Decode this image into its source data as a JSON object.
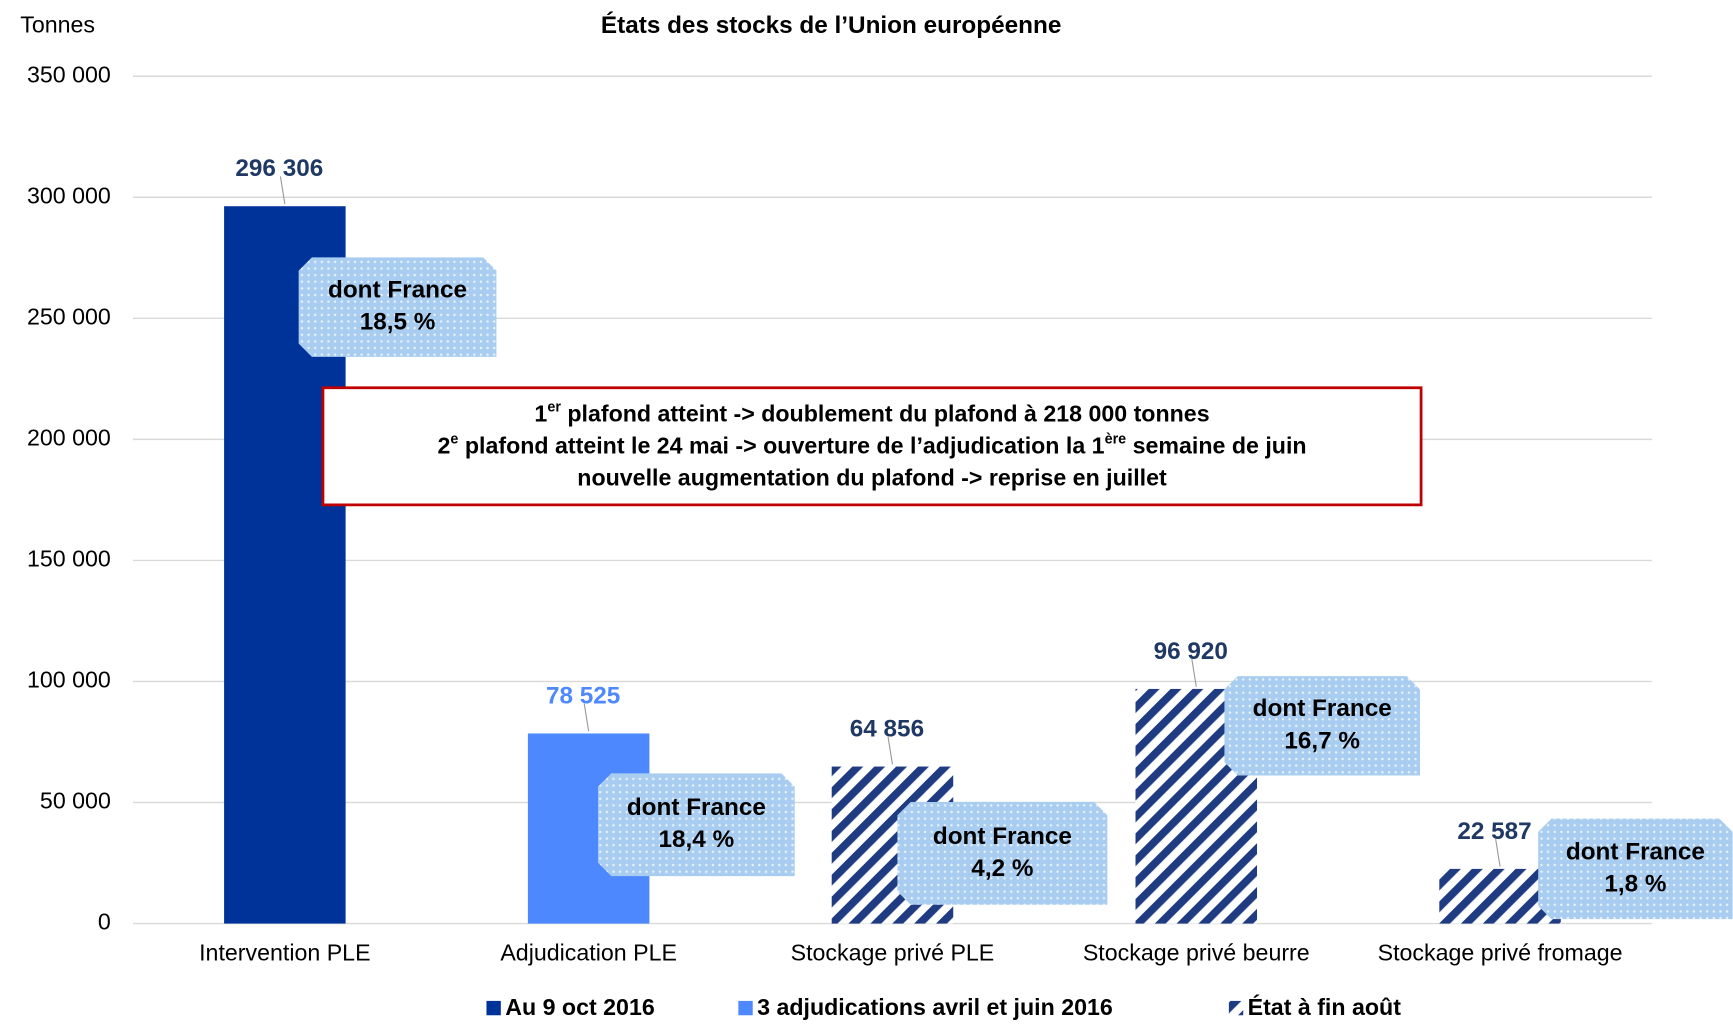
{
  "chart_data": {
    "type": "bar",
    "title": "États des stocks de l’Union européenne",
    "y_label": "Tonnes",
    "categories": [
      "Intervention PLE",
      "Adjudication PLE",
      "Stockage privé PLE",
      "Stockage privé beurre",
      "Stockage privé fromage"
    ],
    "series": [
      {
        "name": "Au 9 oct 2016",
        "color": "#003399",
        "label_color": "#1f3864",
        "values": [
          296306,
          null,
          null,
          null,
          null
        ],
        "value_labels": [
          "296 306",
          null,
          null,
          null,
          null
        ]
      },
      {
        "name": "3 adjudications avril et juin 2016",
        "color": "#4d88ff",
        "label_color": "#4d88ff",
        "values": [
          null,
          78525,
          null,
          null,
          null
        ],
        "value_labels": [
          null,
          "78 525",
          null,
          null,
          null
        ]
      },
      {
        "name": "État à fin août",
        "color": "#1f3b82",
        "pattern": "hatch",
        "label_color": "#1f3864",
        "values": [
          null,
          null,
          64856,
          96920,
          22587
        ],
        "value_labels": [
          null,
          null,
          "64 856",
          "96 920",
          "22 587"
        ]
      }
    ],
    "ylim": [
      0,
      350000
    ],
    "yticks": [
      0,
      {
        "value": 50000,
        "label": "50 000"
      },
      {
        "value": 100000,
        "label": "100 000"
      },
      {
        "value": 150000,
        "label": "150 000"
      },
      {
        "value": 200000,
        "label": "200 000"
      },
      {
        "value": 250000,
        "label": "250 000"
      },
      {
        "value": 300000,
        "label": "300 000"
      },
      {
        "value": 350000,
        "label": "350 000"
      }
    ],
    "grid": true,
    "legend": "bottom",
    "annotations": [
      {
        "lines": [
          "dont France",
          "18,5 %"
        ]
      },
      {
        "lines": [
          "dont France",
          "18,4 %"
        ]
      },
      {
        "lines": [
          "dont France",
          "4,2 %"
        ]
      },
      {
        "lines": [
          "dont France",
          "16,7 %"
        ]
      },
      {
        "lines": [
          "dont France",
          "1,8 %"
        ]
      }
    ],
    "note": {
      "color": "#c00000",
      "lines": [
        [
          "1",
          "er",
          " plafond atteint -> doublement du plafond à 218 000 tonnes"
        ],
        [
          "2",
          "e",
          " plafond atteint le 24 mai -> ouverture de l’adjudication la 1",
          "ère",
          " semaine de juin"
        ],
        [
          "nouvelle augmentation du plafond -> reprise en juillet"
        ]
      ]
    }
  }
}
